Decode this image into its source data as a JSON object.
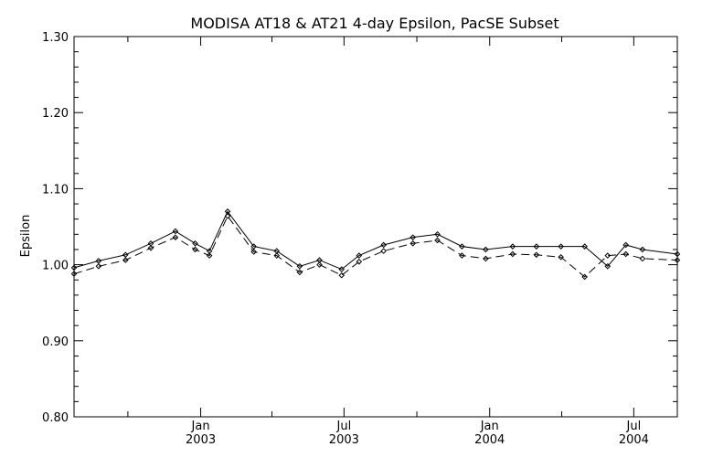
{
  "chart_data": {
    "type": "line",
    "title": "MODISA AT18 & AT21 4-day Epsilon, PacSE Subset",
    "xlabel": "",
    "ylabel": "Epsilon",
    "xlim": [
      "2002-07-25",
      "2004-08-25"
    ],
    "ylim": [
      0.8,
      1.3
    ],
    "y_ticks": [
      "0.80",
      "0.90",
      "1.00",
      "1.10",
      "1.20",
      "1.30"
    ],
    "x_ticks": [
      {
        "date": "2003-01-01",
        "month": "Jan",
        "year": "2003"
      },
      {
        "date": "2003-07-01",
        "month": "Jul",
        "year": "2003"
      },
      {
        "date": "2004-01-01",
        "month": "Jan",
        "year": "2004"
      },
      {
        "date": "2004-07-01",
        "month": "Jul",
        "year": "2004"
      }
    ],
    "x_minor_ticks": [
      "2002-10-01",
      "2003-04-01",
      "2003-10-01",
      "2004-04-01"
    ],
    "grid": false,
    "series": [
      {
        "style": "solid",
        "marker": "diamond",
        "x": [
          "2002-07-25",
          "2002-08-25",
          "2002-09-28",
          "2002-10-30",
          "2002-11-30",
          "2002-12-25",
          "2003-01-12",
          "2003-02-04",
          "2003-03-09",
          "2003-04-07",
          "2003-05-06",
          "2003-05-31",
          "2003-06-28",
          "2003-07-20",
          "2003-08-20",
          "2003-09-26",
          "2003-10-27",
          "2003-11-27",
          "2003-12-27",
          "2004-01-30",
          "2004-02-29",
          "2004-03-31",
          "2004-04-30",
          "2004-05-29",
          "2004-06-21",
          "2004-07-12",
          "2004-08-25"
        ],
        "values": [
          0.996,
          1.005,
          1.013,
          1.028,
          1.044,
          1.028,
          1.018,
          1.07,
          1.024,
          1.018,
          0.998,
          1.006,
          0.994,
          1.012,
          1.026,
          1.036,
          1.04,
          1.024,
          1.02,
          1.024,
          1.024,
          1.024,
          1.024,
          0.998,
          1.026,
          1.02,
          1.014
        ]
      },
      {
        "style": "dashed",
        "marker": "diamond",
        "x": [
          "2002-07-25",
          "2002-08-25",
          "2002-09-28",
          "2002-10-30",
          "2002-11-30",
          "2002-12-25",
          "2003-01-12",
          "2003-02-04",
          "2003-03-09",
          "2003-04-07",
          "2003-05-06",
          "2003-05-31",
          "2003-06-28",
          "2003-07-20",
          "2003-08-20",
          "2003-09-26",
          "2003-10-27",
          "2003-11-27",
          "2003-12-27",
          "2004-01-30",
          "2004-02-29",
          "2004-03-31",
          "2004-04-30",
          "2004-05-29",
          "2004-06-21",
          "2004-07-12",
          "2004-08-25"
        ],
        "values": [
          0.988,
          0.998,
          1.006,
          1.022,
          1.036,
          1.02,
          1.012,
          1.064,
          1.017,
          1.012,
          0.99,
          1.0,
          0.986,
          1.004,
          1.018,
          1.028,
          1.032,
          1.012,
          1.008,
          1.014,
          1.013,
          1.01,
          0.984,
          1.012,
          1.014,
          1.008,
          1.006
        ]
      }
    ]
  }
}
